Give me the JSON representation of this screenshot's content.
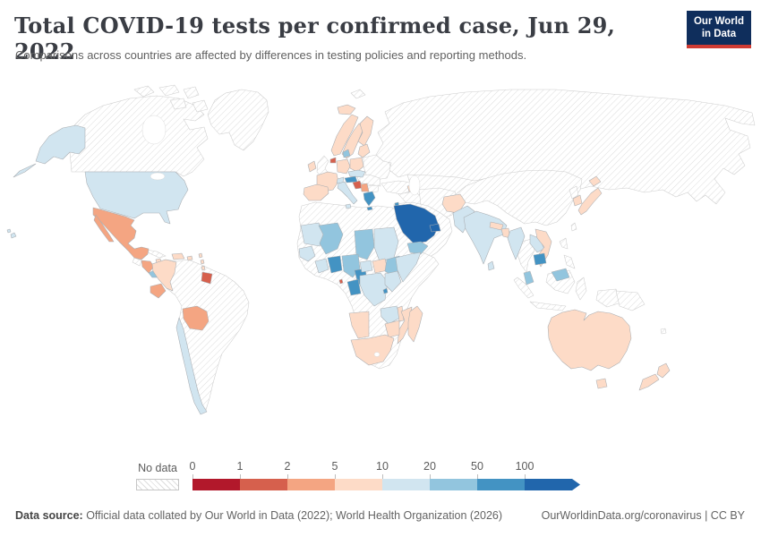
{
  "header": {
    "title": "Total COVID-19 tests per confirmed case, Jun 29, 2022",
    "subtitle": "Comparisons across countries are affected by differences in testing policies and reporting methods."
  },
  "logo": {
    "line1": "Our World",
    "line2": "in Data",
    "bg_color": "#0f2e5c",
    "bar_color": "#cf3b33"
  },
  "footer": {
    "source_label": "Data source:",
    "source_text": " Official data collated by Our World in Data (2022); World Health Organization (2026)",
    "link_text": "OurWorldinData.org/coronavirus | CC BY"
  },
  "chart_data": {
    "type": "choropleth",
    "title": "Total COVID-19 tests per confirmed case",
    "date": "Jun 29, 2022",
    "no_data_label": "No data",
    "tick_labels": [
      "0",
      "1",
      "2",
      "5",
      "10",
      "20",
      "50",
      "100"
    ],
    "legend_bins": [
      "0-1",
      "1-2",
      "2-5",
      "5-10",
      "10-20",
      "20-50",
      "50-100",
      "100+"
    ],
    "bin_colors": [
      "#b2182b",
      "#d6604d",
      "#f4a582",
      "#fddbc7",
      "#d1e5f0",
      "#92c5de",
      "#4393c3",
      "#2166ac"
    ],
    "regions": {
      "canada": -1,
      "arctic-islands": -1,
      "greenland": -1,
      "svalbard": -1,
      "alaska": 4,
      "aleutians": 4,
      "usa": 4,
      "hawaii": 4,
      "mexico": 2,
      "baja-california": 2,
      "guatemala": -1,
      "honduras-nicaragua": 2,
      "costa-rica-panama": 5,
      "cuba": -1,
      "hispaniola": 3,
      "jamaica": 3,
      "puerto-rico": 3,
      "lesser-antilles": 3,
      "south-america-other": -1,
      "colombia": 3,
      "ecuador": 2,
      "suriname": 1,
      "bolivia": 2,
      "chile": 4,
      "iceland": 3,
      "ireland": 3,
      "uk": -1,
      "norway": 3,
      "sweden": 3,
      "finland": 3,
      "denmark": 5,
      "france": 3,
      "iberia": 3,
      "germany": 3,
      "netherlands": 1,
      "poland": 3,
      "baltics": 3,
      "belarus-ukraine": -1,
      "czech-slovakia": 4,
      "austria": 6,
      "switzerland": 4,
      "italy": 4,
      "croatia": 1,
      "serbia": 2,
      "hungary-romania": -1,
      "bulgaria": -1,
      "greece": 6,
      "russia": -1,
      "kazakhstan-central-asia": -1,
      "turkey": -1,
      "syria-iraq": -1,
      "iran": -1,
      "azerbaijan": 3,
      "israel": 6,
      "arabia-other": -1,
      "saudi-arabia": 7,
      "uae-qatar": 7,
      "yemen": 5,
      "afghanistan": 3,
      "pakistan": 4,
      "india": 4,
      "nepal": 3,
      "bangladesh": 3,
      "sri-lanka": 4,
      "china-mongolia": -1,
      "north-korea": -1,
      "south-korea": 3,
      "japan": 3,
      "taiwan": -1,
      "myanmar": 4,
      "thailand": -1,
      "laos": 4,
      "vietnam": 3,
      "cambodia": 6,
      "malaysia-peninsula": 5,
      "malaysia-borneo": 5,
      "indonesia": -1,
      "philippines": -1,
      "papua-new-guinea": -1,
      "fiji": -1,
      "africa-other": -1,
      "mauritania": 4,
      "mali": 5,
      "chad": 5,
      "sudan": 4,
      "senegal-gambia": 4,
      "ivory-coast": 4,
      "ghana-togo-benin": 6,
      "nigeria": 5,
      "equatorial-guinea": 1,
      "cameroon": 6,
      "gabon-congo": 6,
      "central-african-republic": 4,
      "south-sudan": 3,
      "ethiopia": 5,
      "somalia": 4,
      "drc": 4,
      "uganda-kenya": 4,
      "rwanda": 6,
      "zambia": 4,
      "malawi": 3,
      "mozambique": 3,
      "zimbabwe": 3,
      "namibia": 3,
      "south-africa": 3,
      "madagascar": 3,
      "australia": 3,
      "tasmania": 3,
      "new-zealand": 3
    }
  }
}
